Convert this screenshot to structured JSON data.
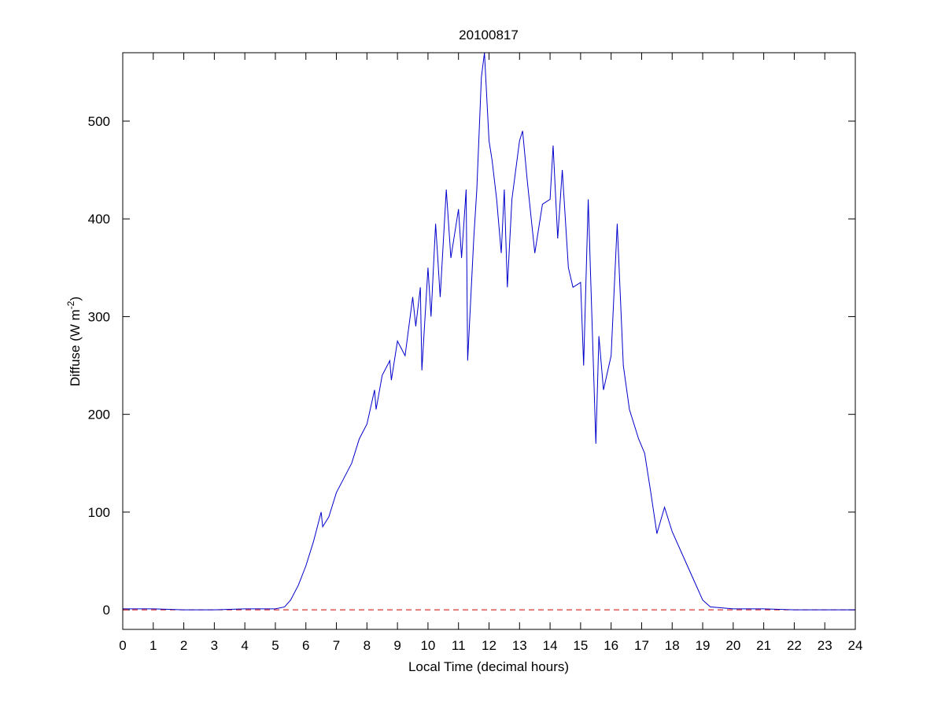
{
  "chart_data": {
    "type": "line",
    "title": "20100817",
    "x_label": "Local Time (decimal hours)",
    "y_label": "Diffuse (W m",
    "y_label_sup": "-2",
    "y_label_end": ")",
    "xlim": [
      0,
      24
    ],
    "xticks": [
      0,
      1,
      2,
      3,
      4,
      5,
      6,
      7,
      8,
      9,
      10,
      11,
      12,
      13,
      14,
      15,
      16,
      17,
      18,
      19,
      20,
      21,
      22,
      23,
      24
    ],
    "ylim": [
      -20,
      570
    ],
    "yticks": [
      0,
      100,
      200,
      300,
      400,
      500
    ],
    "hline": 0,
    "hline_color": "#cc0000",
    "series": [
      {
        "name": "Diffuse",
        "color": "#0000cc",
        "x": [
          0,
          1,
          2,
          3,
          4,
          5,
          5.3,
          5.5,
          5.75,
          6,
          6.25,
          6.5,
          6.55,
          6.75,
          7,
          7.25,
          7.5,
          7.75,
          8,
          8.25,
          8.3,
          8.5,
          8.75,
          8.8,
          9,
          9.25,
          9.5,
          9.6,
          9.75,
          9.8,
          10,
          10.1,
          10.25,
          10.4,
          10.6,
          10.75,
          11,
          11.1,
          11.25,
          11.3,
          11.5,
          11.6,
          11.75,
          11.85,
          12,
          12.1,
          12.25,
          12.4,
          12.5,
          12.6,
          12.75,
          13,
          13.1,
          13.25,
          13.4,
          13.5,
          13.75,
          14,
          14.1,
          14.25,
          14.4,
          14.6,
          14.75,
          15,
          15.1,
          15.25,
          15.5,
          15.6,
          15.75,
          16,
          16.2,
          16.4,
          16.6,
          16.9,
          17.1,
          17.3,
          17.5,
          17.75,
          18,
          18.5,
          19,
          19.25,
          20,
          21,
          22,
          23,
          24
        ],
        "values": [
          1,
          1,
          0,
          0,
          1,
          1,
          3,
          10,
          25,
          45,
          70,
          100,
          85,
          95,
          120,
          135,
          150,
          175,
          190,
          225,
          205,
          240,
          255,
          235,
          275,
          260,
          320,
          290,
          330,
          245,
          350,
          300,
          395,
          320,
          430,
          360,
          410,
          360,
          430,
          255,
          380,
          430,
          545,
          570,
          480,
          460,
          420,
          365,
          430,
          330,
          420,
          480,
          490,
          440,
          395,
          365,
          415,
          420,
          475,
          380,
          450,
          350,
          330,
          335,
          250,
          420,
          170,
          280,
          225,
          260,
          395,
          250,
          205,
          175,
          160,
          120,
          78,
          105,
          80,
          45,
          10,
          3,
          1,
          1,
          0,
          0,
          0
        ]
      }
    ]
  }
}
